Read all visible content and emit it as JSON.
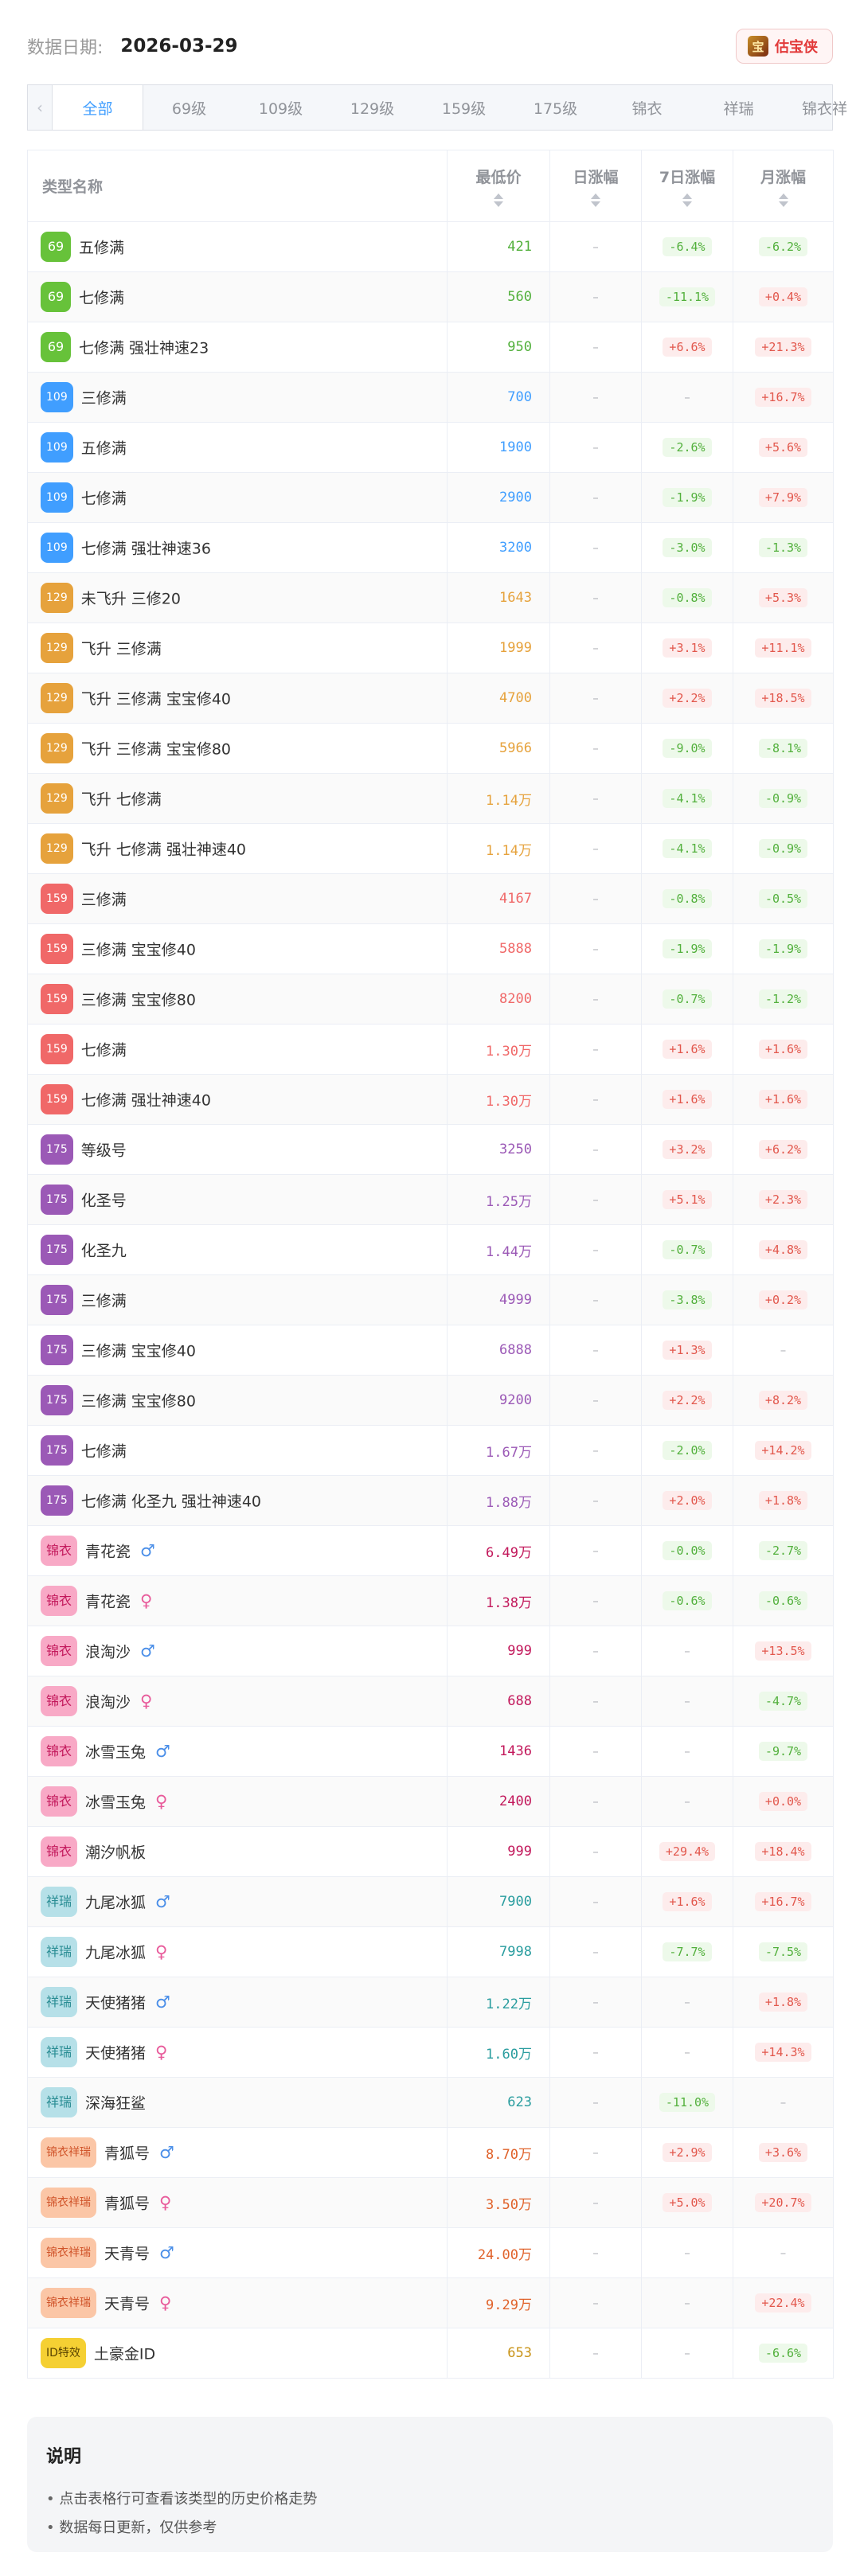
{
  "header": {
    "date_label": "数据日期:",
    "date_value": "2026-03-29",
    "brand_logo": "宝",
    "brand_name": "估宝侠"
  },
  "tabs": [
    "全部",
    "69级",
    "109级",
    "129级",
    "159级",
    "175级",
    "锦衣",
    "祥瑞",
    "锦衣祥"
  ],
  "columns": {
    "name": "类型名称",
    "price": "最低价",
    "day": "日涨幅",
    "week": "7日涨幅",
    "month": "月涨幅"
  },
  "badge_colors": {
    "69": "#67c23a",
    "109": "#409eff",
    "129": "#e6a23c",
    "159": "#f06868",
    "175": "#9b59b6",
    "锦衣": "#f8a9c6",
    "祥瑞": "#b6e0e8",
    "锦衣祥瑞": "#fbc6a6",
    "ID特效": "#f5d033"
  },
  "rows": [
    {
      "badge": "69",
      "name": "五修满",
      "price": "421",
      "price_color": "#52b03c",
      "day": "–",
      "week": "-6.4%",
      "month": "-6.2%"
    },
    {
      "badge": "69",
      "name": "七修满",
      "price": "560",
      "price_color": "#52b03c",
      "day": "–",
      "week": "-11.1%",
      "month": "+0.4%"
    },
    {
      "badge": "69",
      "name": "七修满 强壮神速23",
      "price": "950",
      "price_color": "#52b03c",
      "day": "–",
      "week": "+6.6%",
      "month": "+21.3%"
    },
    {
      "badge": "109",
      "name": "三修满",
      "price": "700",
      "price_color": "#409eff",
      "day": "–",
      "week": "–",
      "month": "+16.7%"
    },
    {
      "badge": "109",
      "name": "五修满",
      "price": "1900",
      "price_color": "#409eff",
      "day": "–",
      "week": "-2.6%",
      "month": "+5.6%"
    },
    {
      "badge": "109",
      "name": "七修满",
      "price": "2900",
      "price_color": "#409eff",
      "day": "–",
      "week": "-1.9%",
      "month": "+7.9%"
    },
    {
      "badge": "109",
      "name": "七修满 强壮神速36",
      "price": "3200",
      "price_color": "#409eff",
      "day": "–",
      "week": "-3.0%",
      "month": "-1.3%"
    },
    {
      "badge": "129",
      "name": "未飞升 三修20",
      "price": "1643",
      "price_color": "#e6a23c",
      "day": "–",
      "week": "-0.8%",
      "month": "+5.3%"
    },
    {
      "badge": "129",
      "name": "飞升 三修满",
      "price": "1999",
      "price_color": "#e6a23c",
      "day": "–",
      "week": "+3.1%",
      "month": "+11.1%"
    },
    {
      "badge": "129",
      "name": "飞升 三修满 宝宝修40",
      "price": "4700",
      "price_color": "#e6a23c",
      "day": "–",
      "week": "+2.2%",
      "month": "+18.5%"
    },
    {
      "badge": "129",
      "name": "飞升 三修满 宝宝修80",
      "price": "5966",
      "price_color": "#e6a23c",
      "day": "–",
      "week": "-9.0%",
      "month": "-8.1%"
    },
    {
      "badge": "129",
      "name": "飞升 七修满",
      "price": "1.14万",
      "price_color": "#e6a23c",
      "day": "–",
      "week": "-4.1%",
      "month": "-0.9%"
    },
    {
      "badge": "129",
      "name": "飞升 七修满 强壮神速40",
      "price": "1.14万",
      "price_color": "#e6a23c",
      "day": "–",
      "week": "-4.1%",
      "month": "-0.9%"
    },
    {
      "badge": "159",
      "name": "三修满",
      "price": "4167",
      "price_color": "#f06868",
      "day": "–",
      "week": "-0.8%",
      "month": "-0.5%"
    },
    {
      "badge": "159",
      "name": "三修满 宝宝修40",
      "price": "5888",
      "price_color": "#f06868",
      "day": "–",
      "week": "-1.9%",
      "month": "-1.9%"
    },
    {
      "badge": "159",
      "name": "三修满 宝宝修80",
      "price": "8200",
      "price_color": "#f06868",
      "day": "–",
      "week": "-0.7%",
      "month": "-1.2%"
    },
    {
      "badge": "159",
      "name": "七修满",
      "price": "1.30万",
      "price_color": "#f06868",
      "day": "–",
      "week": "+1.6%",
      "month": "+1.6%"
    },
    {
      "badge": "159",
      "name": "七修满 强壮神速40",
      "price": "1.30万",
      "price_color": "#f06868",
      "day": "–",
      "week": "+1.6%",
      "month": "+1.6%"
    },
    {
      "badge": "175",
      "name": "等级号",
      "price": "3250",
      "price_color": "#9b59b6",
      "day": "–",
      "week": "+3.2%",
      "month": "+6.2%"
    },
    {
      "badge": "175",
      "name": "化圣号",
      "price": "1.25万",
      "price_color": "#9b59b6",
      "day": "–",
      "week": "+5.1%",
      "month": "+2.3%"
    },
    {
      "badge": "175",
      "name": "化圣九",
      "price": "1.44万",
      "price_color": "#9b59b6",
      "day": "–",
      "week": "-0.7%",
      "month": "+4.8%"
    },
    {
      "badge": "175",
      "name": "三修满",
      "price": "4999",
      "price_color": "#9b59b6",
      "day": "–",
      "week": "-3.8%",
      "month": "+0.2%"
    },
    {
      "badge": "175",
      "name": "三修满 宝宝修40",
      "price": "6888",
      "price_color": "#9b59b6",
      "day": "–",
      "week": "+1.3%",
      "month": "–"
    },
    {
      "badge": "175",
      "name": "三修满 宝宝修80",
      "price": "9200",
      "price_color": "#9b59b6",
      "day": "–",
      "week": "+2.2%",
      "month": "+8.2%"
    },
    {
      "badge": "175",
      "name": "七修满",
      "price": "1.67万",
      "price_color": "#9b59b6",
      "day": "–",
      "week": "-2.0%",
      "month": "+14.2%"
    },
    {
      "badge": "175",
      "name": "七修满 化圣九 强壮神速40",
      "price": "1.88万",
      "price_color": "#9b59b6",
      "day": "–",
      "week": "+2.0%",
      "month": "+1.8%"
    },
    {
      "badge": "锦衣",
      "name": "青花瓷",
      "gender": "♂",
      "price": "6.49万",
      "price_color": "#c2185b",
      "day": "–",
      "week": "-0.0%",
      "month": "-2.7%"
    },
    {
      "badge": "锦衣",
      "name": "青花瓷",
      "gender": "♀",
      "price": "1.38万",
      "price_color": "#c2185b",
      "day": "–",
      "week": "-0.6%",
      "month": "-0.6%"
    },
    {
      "badge": "锦衣",
      "name": "浪淘沙",
      "gender": "♂",
      "price": "999",
      "price_color": "#c2185b",
      "day": "–",
      "week": "–",
      "month": "+13.5%"
    },
    {
      "badge": "锦衣",
      "name": "浪淘沙",
      "gender": "♀",
      "price": "688",
      "price_color": "#c2185b",
      "day": "–",
      "week": "–",
      "month": "-4.7%"
    },
    {
      "badge": "锦衣",
      "name": "冰雪玉兔",
      "gender": "♂",
      "price": "1436",
      "price_color": "#c2185b",
      "day": "–",
      "week": "–",
      "month": "-9.7%"
    },
    {
      "badge": "锦衣",
      "name": "冰雪玉兔",
      "gender": "♀",
      "price": "2400",
      "price_color": "#c2185b",
      "day": "–",
      "week": "–",
      "month": "+0.0%"
    },
    {
      "badge": "锦衣",
      "name": "潮汐帆板",
      "price": "999",
      "price_color": "#c2185b",
      "day": "–",
      "week": "+29.4%",
      "month": "+18.4%"
    },
    {
      "badge": "祥瑞",
      "name": "九尾冰狐",
      "gender": "♂",
      "price": "7900",
      "price_color": "#2a9d9f",
      "day": "–",
      "week": "+1.6%",
      "month": "+16.7%"
    },
    {
      "badge": "祥瑞",
      "name": "九尾冰狐",
      "gender": "♀",
      "price": "7998",
      "price_color": "#2a9d9f",
      "day": "–",
      "week": "-7.7%",
      "month": "-7.5%"
    },
    {
      "badge": "祥瑞",
      "name": "天使猪猪",
      "gender": "♂",
      "price": "1.22万",
      "price_color": "#2a9d9f",
      "day": "–",
      "week": "–",
      "month": "+1.8%"
    },
    {
      "badge": "祥瑞",
      "name": "天使猪猪",
      "gender": "♀",
      "price": "1.60万",
      "price_color": "#2a9d9f",
      "day": "–",
      "week": "–",
      "month": "+14.3%"
    },
    {
      "badge": "祥瑞",
      "name": "深海狂鲨",
      "price": "623",
      "price_color": "#2a9d9f",
      "day": "–",
      "week": "-11.0%",
      "month": "–"
    },
    {
      "badge": "锦衣祥瑞",
      "name": "青狐号",
      "gender": "♂",
      "price": "8.70万",
      "price_color": "#e0622a",
      "day": "–",
      "week": "+2.9%",
      "month": "+3.6%"
    },
    {
      "badge": "锦衣祥瑞",
      "name": "青狐号",
      "gender": "♀",
      "price": "3.50万",
      "price_color": "#e0622a",
      "day": "–",
      "week": "+5.0%",
      "month": "+20.7%"
    },
    {
      "badge": "锦衣祥瑞",
      "name": "天青号",
      "gender": "♂",
      "price": "24.00万",
      "price_color": "#e0622a",
      "day": "–",
      "week": "–",
      "month": "–"
    },
    {
      "badge": "锦衣祥瑞",
      "name": "天青号",
      "gender": "♀",
      "price": "9.29万",
      "price_color": "#e0622a",
      "day": "–",
      "week": "–",
      "month": "+22.4%"
    },
    {
      "badge": "ID特效",
      "name": "土豪金ID",
      "price": "653",
      "price_color": "#c9941a",
      "day": "–",
      "week": "–",
      "month": "-6.6%"
    }
  ],
  "note": {
    "title": "说明",
    "items": [
      "点击表格行可查看该类型的历史价格走势",
      "数据每日更新，仅供参考"
    ]
  }
}
